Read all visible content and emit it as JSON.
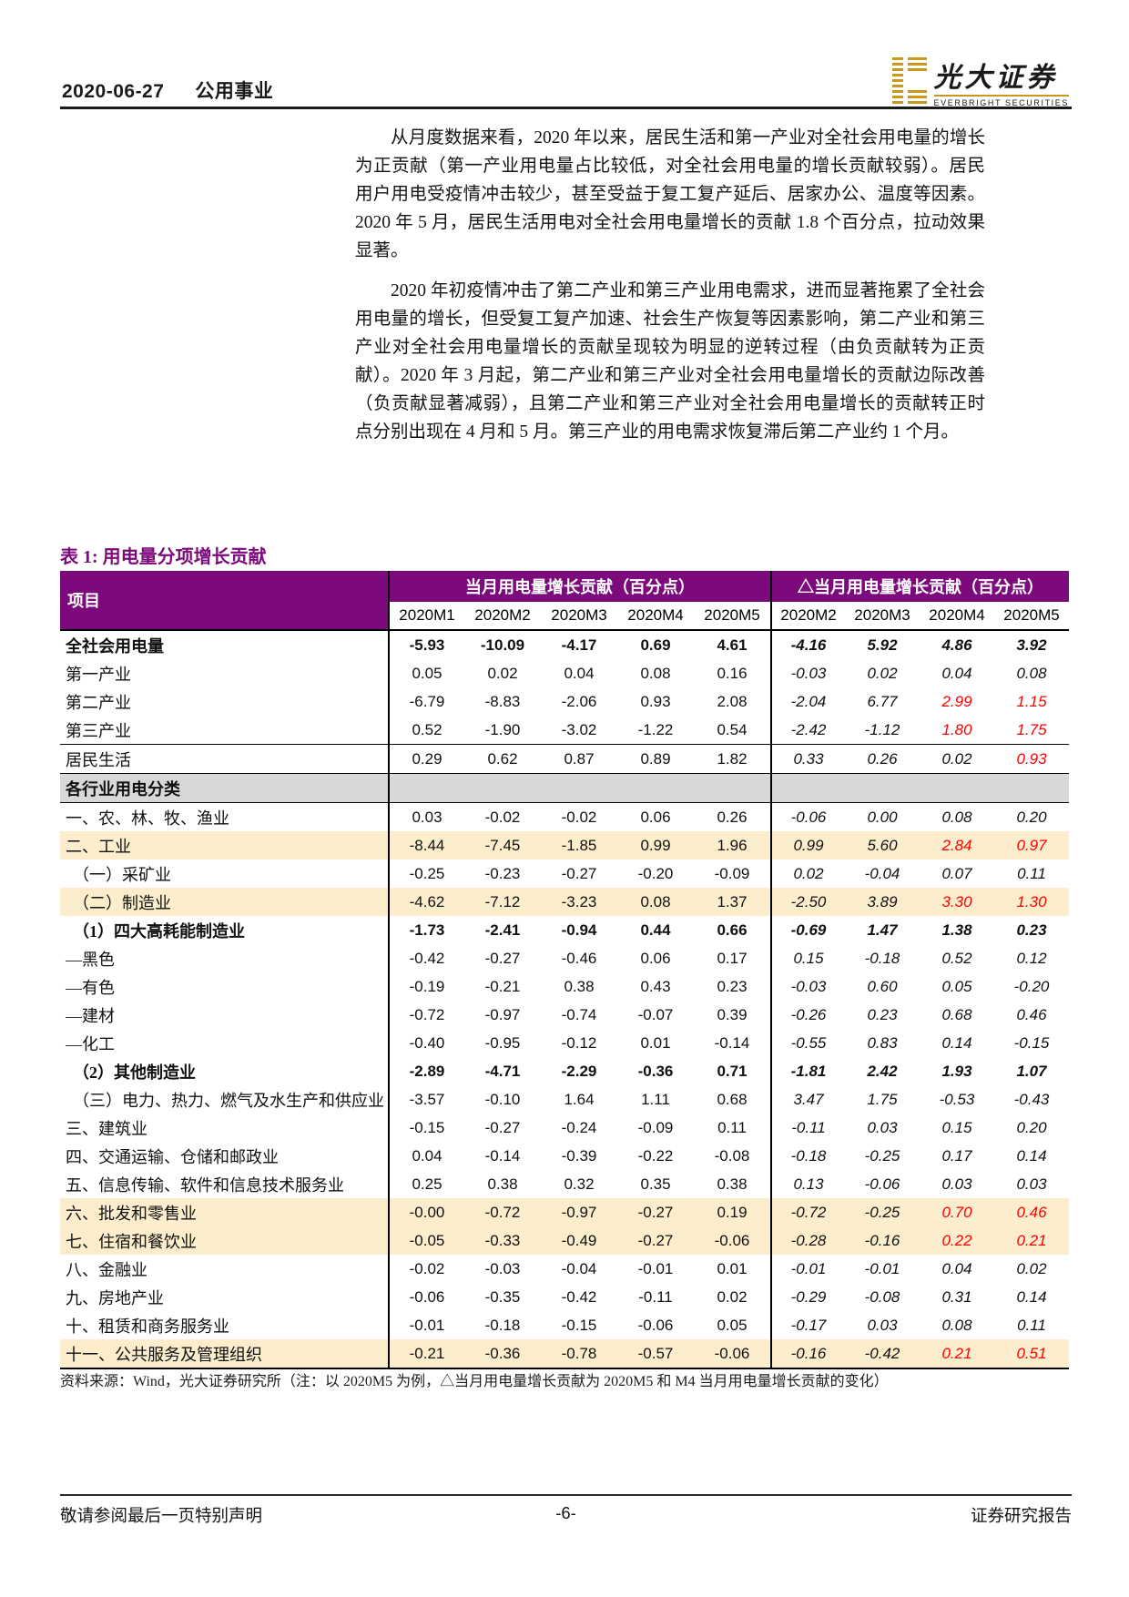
{
  "header": {
    "date": "2020-06-27",
    "category": "公用事业",
    "logo_cn": "光大证券",
    "logo_en": "EVERBRIGHT SECURITIES"
  },
  "paragraphs": [
    "从月度数据来看，2020 年以来，居民生活和第一产业对全社会用电量的增长为正贡献（第一产业用电量占比较低，对全社会用电量的增长贡献较弱）。居民用户用电受疫情冲击较少，甚至受益于复工复产延后、居家办公、温度等因素。2020 年 5 月，居民生活用电对全社会用电量增长的贡献 1.8 个百分点，拉动效果显著。",
    "2020 年初疫情冲击了第二产业和第三产业用电需求，进而显著拖累了全社会用电量的增长，但受复工复产加速、社会生产恢复等因素影响，第二产业和第三产业对全社会用电量增长的贡献呈现较为明显的逆转过程（由负贡献转为正贡献）。2020 年 3 月起，第二产业和第三产业对全社会用电量增长的贡献边际改善（负贡献显著减弱），且第二产业和第三产业对全社会用电量增长的贡献转正时点分别出现在 4 月和 5 月。第三产业的用电需求恢复滞后第二产业约 1 个月。"
  ],
  "table": {
    "title": "表 1: 用电量分项增长贡献",
    "item_header": "项目",
    "group1": "当月用电量增长贡献（百分点）",
    "group2": "△当月用电量增长贡献（百分点）",
    "months1": [
      "2020M1",
      "2020M2",
      "2020M3",
      "2020M4",
      "2020M5"
    ],
    "months2": [
      "2020M2",
      "2020M3",
      "2020M4",
      "2020M5"
    ],
    "rows": [
      {
        "label": "全社会用电量",
        "style": "bold",
        "bg": null,
        "v": [
          "-5.93",
          "-10.09",
          "-4.17",
          "0.69",
          "4.61"
        ],
        "d": [
          "-4.16",
          "5.92",
          "4.86",
          "3.92"
        ],
        "red": []
      },
      {
        "label": "第一产业",
        "style": "plain",
        "bg": null,
        "v": [
          "0.05",
          "0.02",
          "0.04",
          "0.08",
          "0.16"
        ],
        "d": [
          "-0.03",
          "0.02",
          "0.04",
          "0.08"
        ],
        "red": []
      },
      {
        "label": "第二产业",
        "style": "plain",
        "bg": null,
        "v": [
          "-6.79",
          "-8.83",
          "-2.06",
          "0.93",
          "2.08"
        ],
        "d": [
          "-2.04",
          "6.77",
          "2.99",
          "1.15"
        ],
        "red": [
          2,
          3
        ]
      },
      {
        "label": "第三产业",
        "style": "plain",
        "bg": null,
        "v": [
          "0.52",
          "-1.90",
          "-3.02",
          "-1.22",
          "0.54"
        ],
        "d": [
          "-2.42",
          "-1.12",
          "1.80",
          "1.75"
        ],
        "red": [
          2,
          3
        ],
        "line_below": true
      },
      {
        "label": "居民生活",
        "style": "plain",
        "bg": null,
        "v": [
          "0.29",
          "0.62",
          "0.87",
          "0.89",
          "1.82"
        ],
        "d": [
          "0.33",
          "0.26",
          "0.02",
          "0.93"
        ],
        "red": [
          3
        ]
      },
      {
        "label": "各行业用电分类",
        "style": "section",
        "bg": "gray",
        "v": [
          "",
          "",
          "",
          "",
          ""
        ],
        "d": [
          "",
          "",
          "",
          ""
        ],
        "red": []
      },
      {
        "label": "一、农、林、牧、渔业",
        "style": "plain",
        "bg": null,
        "v": [
          "0.03",
          "-0.02",
          "-0.02",
          "0.06",
          "0.26"
        ],
        "d": [
          "-0.06",
          "0.00",
          "0.08",
          "0.20"
        ],
        "red": []
      },
      {
        "label": "二、工业",
        "style": "plain",
        "bg": "yellow",
        "v": [
          "-8.44",
          "-7.45",
          "-1.85",
          "0.99",
          "1.96"
        ],
        "d": [
          "0.99",
          "5.60",
          "2.84",
          "0.97"
        ],
        "red": [
          2,
          3
        ]
      },
      {
        "label": "（一）采矿业",
        "style": "plain",
        "bg": null,
        "ind": true,
        "v": [
          "-0.25",
          "-0.23",
          "-0.27",
          "-0.20",
          "-0.09"
        ],
        "d": [
          "0.02",
          "-0.04",
          "0.07",
          "0.11"
        ],
        "red": []
      },
      {
        "label": "（二）制造业",
        "style": "plain",
        "bg": "yellow",
        "ind": true,
        "v": [
          "-4.62",
          "-7.12",
          "-3.23",
          "0.08",
          "1.37"
        ],
        "d": [
          "-2.50",
          "3.89",
          "3.30",
          "1.30"
        ],
        "red": [
          2,
          3
        ]
      },
      {
        "label": "（1）四大高耗能制造业",
        "style": "bold",
        "bg": null,
        "ind": true,
        "v": [
          "-1.73",
          "-2.41",
          "-0.94",
          "0.44",
          "0.66"
        ],
        "d": [
          "-0.69",
          "1.47",
          "1.38",
          "0.23"
        ],
        "red": []
      },
      {
        "label": "—黑色",
        "style": "plain",
        "bg": null,
        "v": [
          "-0.42",
          "-0.27",
          "-0.46",
          "0.06",
          "0.17"
        ],
        "d": [
          "0.15",
          "-0.18",
          "0.52",
          "0.12"
        ],
        "red": []
      },
      {
        "label": "—有色",
        "style": "plain",
        "bg": null,
        "v": [
          "-0.19",
          "-0.21",
          "0.38",
          "0.43",
          "0.23"
        ],
        "d": [
          "-0.03",
          "0.60",
          "0.05",
          "-0.20"
        ],
        "red": []
      },
      {
        "label": "—建材",
        "style": "plain",
        "bg": null,
        "v": [
          "-0.72",
          "-0.97",
          "-0.74",
          "-0.07",
          "0.39"
        ],
        "d": [
          "-0.26",
          "0.23",
          "0.68",
          "0.46"
        ],
        "red": []
      },
      {
        "label": "—化工",
        "style": "plain",
        "bg": null,
        "v": [
          "-0.40",
          "-0.95",
          "-0.12",
          "0.01",
          "-0.14"
        ],
        "d": [
          "-0.55",
          "0.83",
          "0.14",
          "-0.15"
        ],
        "red": []
      },
      {
        "label": "（2）其他制造业",
        "style": "bold",
        "bg": null,
        "ind": true,
        "v": [
          "-2.89",
          "-4.71",
          "-2.29",
          "-0.36",
          "0.71"
        ],
        "d": [
          "-1.81",
          "2.42",
          "1.93",
          "1.07"
        ],
        "red": []
      },
      {
        "label": "（三）电力、热力、燃气及水生产和供应业",
        "style": "plain",
        "bg": null,
        "ind": true,
        "v": [
          "-3.57",
          "-0.10",
          "1.64",
          "1.11",
          "0.68"
        ],
        "d": [
          "3.47",
          "1.75",
          "-0.53",
          "-0.43"
        ],
        "red": []
      },
      {
        "label": "三、建筑业",
        "style": "plain",
        "bg": null,
        "v": [
          "-0.15",
          "-0.27",
          "-0.24",
          "-0.09",
          "0.11"
        ],
        "d": [
          "-0.11",
          "0.03",
          "0.15",
          "0.20"
        ],
        "red": []
      },
      {
        "label": "四、交通运输、仓储和邮政业",
        "style": "plain",
        "bg": null,
        "v": [
          "0.04",
          "-0.14",
          "-0.39",
          "-0.22",
          "-0.08"
        ],
        "d": [
          "-0.18",
          "-0.25",
          "0.17",
          "0.14"
        ],
        "red": []
      },
      {
        "label": "五、信息传输、软件和信息技术服务业",
        "style": "plain",
        "bg": null,
        "v": [
          "0.25",
          "0.38",
          "0.32",
          "0.35",
          "0.38"
        ],
        "d": [
          "0.13",
          "-0.06",
          "0.03",
          "0.03"
        ],
        "red": []
      },
      {
        "label": "六、批发和零售业",
        "style": "plain",
        "bg": "yellow",
        "v": [
          "-0.00",
          "-0.72",
          "-0.97",
          "-0.27",
          "0.19"
        ],
        "d": [
          "-0.72",
          "-0.25",
          "0.70",
          "0.46"
        ],
        "red": [
          2,
          3
        ]
      },
      {
        "label": "七、住宿和餐饮业",
        "style": "plain",
        "bg": "yellow",
        "v": [
          "-0.05",
          "-0.33",
          "-0.49",
          "-0.27",
          "-0.06"
        ],
        "d": [
          "-0.28",
          "-0.16",
          "0.22",
          "0.21"
        ],
        "red": [
          2,
          3
        ]
      },
      {
        "label": "八、金融业",
        "style": "plain",
        "bg": null,
        "v": [
          "-0.02",
          "-0.03",
          "-0.04",
          "-0.01",
          "0.01"
        ],
        "d": [
          "-0.01",
          "-0.01",
          "0.04",
          "0.02"
        ],
        "red": []
      },
      {
        "label": "九、房地产业",
        "style": "plain",
        "bg": null,
        "v": [
          "-0.06",
          "-0.35",
          "-0.42",
          "-0.11",
          "0.02"
        ],
        "d": [
          "-0.29",
          "-0.08",
          "0.31",
          "0.14"
        ],
        "red": []
      },
      {
        "label": "十、租赁和商务服务业",
        "style": "plain",
        "bg": null,
        "v": [
          "-0.01",
          "-0.18",
          "-0.15",
          "-0.06",
          "0.05"
        ],
        "d": [
          "-0.17",
          "0.03",
          "0.08",
          "0.11"
        ],
        "red": []
      },
      {
        "label": "十一、公共服务及管理组织",
        "style": "plain",
        "bg": "yellow",
        "v": [
          "-0.21",
          "-0.36",
          "-0.78",
          "-0.57",
          "-0.06"
        ],
        "d": [
          "-0.16",
          "-0.42",
          "0.21",
          "0.51"
        ],
        "red": [
          2,
          3
        ]
      }
    ],
    "source_note": "资料来源：Wind，光大证券研究所（注：以 2020M5 为例，△当月用电量增长贡献为 2020M5 和 M4 当月用电量增长贡献的变化）"
  },
  "footer": {
    "left": "敬请参阅最后一页特别声明",
    "page": "-6-",
    "right": "证券研究报告"
  },
  "colors": {
    "header_purple": "#7D0A7D",
    "title_purple": "#7D0A7D",
    "highlight_yellow": "#FCEDCD",
    "section_gray": "#D8D8D8",
    "negative_red": "#FF0000",
    "brand_gold": "#C79A1E"
  }
}
